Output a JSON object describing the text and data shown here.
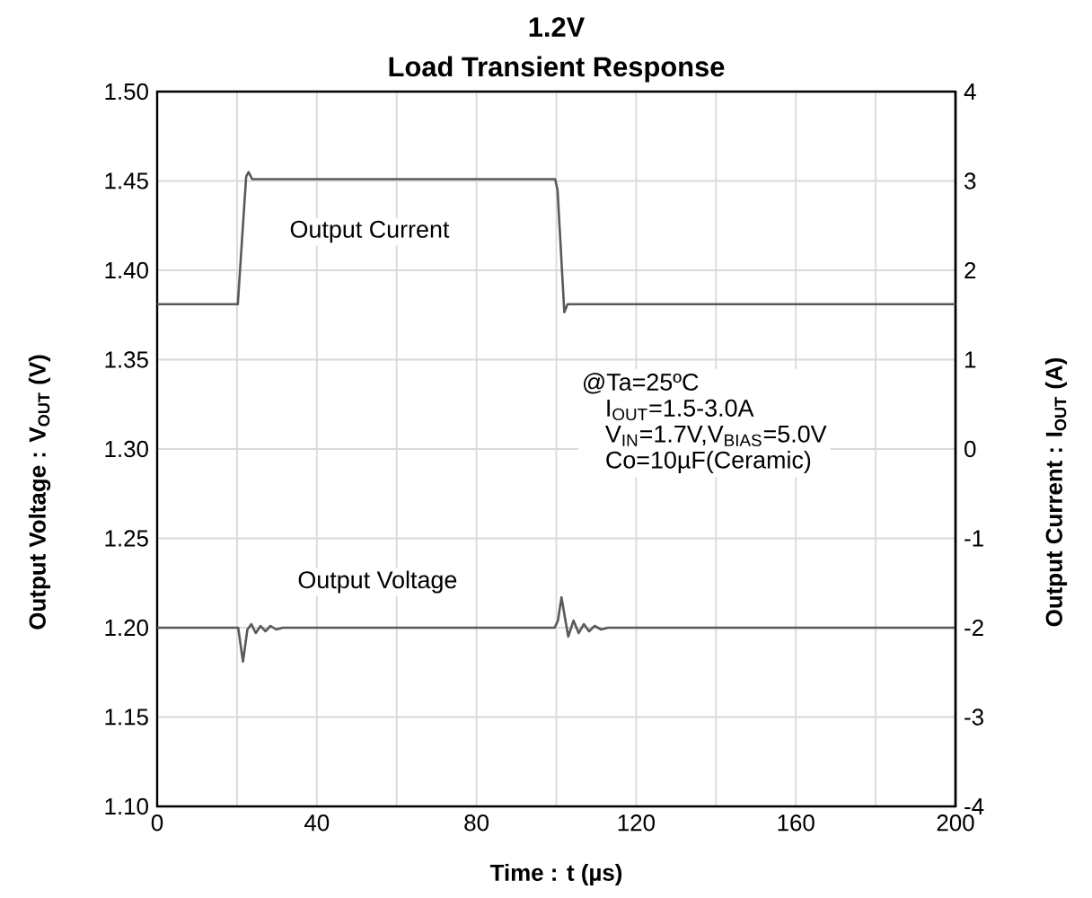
{
  "chart_data": {
    "type": "line",
    "title": "1.2V",
    "subtitle": "Load Transient Response",
    "xlabel": "Time : t (µs)",
    "ylabel": "Output Voltage : V$_{OUT}$ (V)",
    "y2label": "Output Current : I$_{OUT}$ (A)",
    "series": [
      {
        "name": "Output Current",
        "color": "#595959",
        "axis": "y2",
        "x": [
          0,
          20.2,
          22.3,
          22.9,
          23.8,
          99.7,
          100.3,
          102.0,
          102.8,
          200
        ],
        "values": [
          1.62,
          1.62,
          3.05,
          3.1,
          3.02,
          3.02,
          2.9,
          1.53,
          1.62,
          1.62
        ]
      },
      {
        "name": "Output Voltage",
        "color": "#595959",
        "x": [
          0,
          20.3,
          21.5,
          22.6,
          23.6,
          24.7,
          25.9,
          27.1,
          28.4,
          29.8,
          31.5,
          99.6,
          100.4,
          101.3,
          102.2,
          103.0,
          104.3,
          105.6,
          106.9,
          108.2,
          109.6,
          111.2,
          113.0,
          200
        ],
        "values": [
          1.2,
          1.2,
          1.181,
          1.199,
          1.202,
          1.197,
          1.201,
          1.198,
          1.201,
          1.199,
          1.2,
          1.2,
          1.204,
          1.217,
          1.205,
          1.195,
          1.204,
          1.197,
          1.202,
          1.198,
          1.201,
          1.199,
          1.2,
          1.2
        ]
      }
    ],
    "xlim": [
      0,
      200
    ],
    "xticks": [
      0,
      40,
      80,
      120,
      160,
      200
    ],
    "ylim": [
      1.1,
      1.5
    ],
    "yticks": [
      {
        "value": 1.1,
        "label": "1.10"
      },
      1.15,
      {
        "value": 1.2,
        "label": "1.20"
      },
      1.25,
      {
        "value": 1.3,
        "label": "1.30"
      },
      1.35,
      {
        "value": 1.4,
        "label": "1.40"
      },
      1.45,
      {
        "value": 1.5,
        "label": "1.50"
      }
    ],
    "y2lim": [
      -4,
      4
    ],
    "y2ticks": [
      -4,
      -3,
      -2,
      -1,
      0,
      1,
      2,
      3,
      4
    ],
    "grid": true,
    "legend": false,
    "annotations": [
      "@Ta=25ºC",
      "I$_{OUT}$=1.5-3.0A",
      "V$_{IN}$=1.7V,V$_{BIAS}$=5.0V",
      "Co=10µF(Ceramic)"
    ]
  }
}
